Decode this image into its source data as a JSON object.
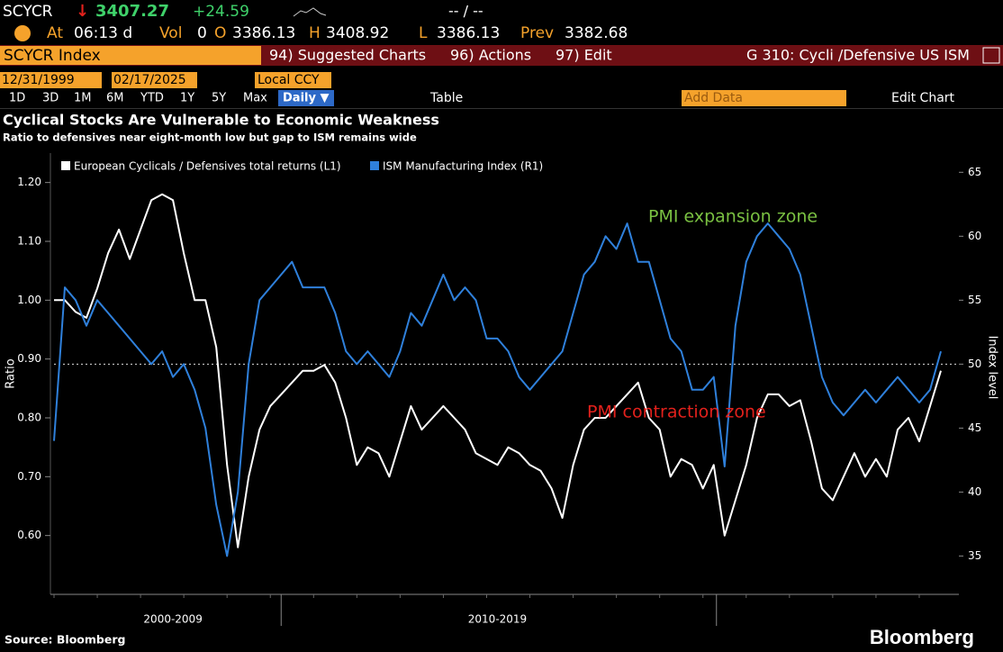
{
  "terminal": {
    "ticker": "SCYCR",
    "arrow": "↓",
    "last": "3407.27",
    "change": "+24.59",
    "bid_ask": "-- / --",
    "at_label": "At",
    "time": "06:13 d",
    "vol_label": "Vol",
    "vol": "0",
    "open_label": "O",
    "open": "3386.13",
    "high_label": "H",
    "high": "3408.92",
    "low_label": "L",
    "low": "3386.13",
    "prev_label": "Prev",
    "prev": "3382.68",
    "security": "SCYCR Index",
    "menu": [
      "94) Suggested Charts",
      "96) Actions",
      "97) Edit"
    ],
    "chart_id": "G 310: Cycli /Defensive US ISM",
    "start_date": "12/31/1999",
    "end_date": "02/17/2025",
    "currency": "Local CCY",
    "periods": [
      "1D",
      "3D",
      "1M",
      "6M",
      "YTD",
      "1Y",
      "5Y",
      "Max"
    ],
    "frequency": "Daily ▼",
    "table": "Table",
    "add_data": "Add Data",
    "edit_chart": "Edit Chart"
  },
  "chart_data": {
    "type": "line",
    "title": "Cyclical Stocks Are Vulnerable to Economic Weakness",
    "subtitle": "Ratio to defensives near eight-month low but gap to ISM remains wide",
    "source": "Source: Bloomberg",
    "brand": "Bloomberg",
    "y_label": "Ratio",
    "y2_label": "Index level",
    "categories": [
      null,
      null,
      null,
      null,
      null,
      null,
      null,
      null,
      null,
      null,
      null,
      "2000-2009",
      null,
      null,
      null,
      null,
      null,
      null,
      null,
      null,
      null,
      null,
      null,
      null,
      null,
      null,
      null,
      null,
      null,
      null,
      null,
      null,
      null,
      null,
      null,
      null,
      null,
      null,
      null,
      null,
      null,
      "2010-2019",
      null,
      null,
      null,
      null,
      null,
      null,
      null,
      null,
      null,
      null,
      null,
      null,
      null,
      null,
      null,
      null,
      null,
      null,
      null,
      null,
      null,
      null,
      null,
      null,
      null,
      null,
      null,
      null,
      null,
      null,
      null,
      null,
      null,
      null,
      null,
      null,
      null,
      null,
      null,
      null,
      null
    ],
    "series": [
      {
        "name": "European Cyclicals / Defensives total returns (L1)",
        "color": "#ffffff",
        "axis": "y",
        "values": [
          1.0,
          1.0,
          0.98,
          0.97,
          1.02,
          1.08,
          1.12,
          1.07,
          1.12,
          1.17,
          1.18,
          1.17,
          1.08,
          1.0,
          1.0,
          0.92,
          0.72,
          0.58,
          0.7,
          0.78,
          0.82,
          0.84,
          0.86,
          0.88,
          0.88,
          0.89,
          0.86,
          0.8,
          0.72,
          0.75,
          0.74,
          0.7,
          0.76,
          0.82,
          0.78,
          0.8,
          0.82,
          0.8,
          0.78,
          0.74,
          0.73,
          0.72,
          0.75,
          0.74,
          0.72,
          0.71,
          0.68,
          0.63,
          0.72,
          0.78,
          0.8,
          0.8,
          0.82,
          0.84,
          0.86,
          0.8,
          0.78,
          0.7,
          0.73,
          0.72,
          0.68,
          0.72,
          0.6,
          0.66,
          0.72,
          0.8,
          0.84,
          0.84,
          0.82,
          0.83,
          0.76,
          0.68,
          0.66,
          0.7,
          0.74,
          0.7,
          0.73,
          0.7,
          0.78,
          0.8,
          0.76,
          0.82,
          0.88
        ]
      },
      {
        "name": "ISM Manufacturing Index (R1)",
        "color": "#2f80db",
        "axis": "y2",
        "values": [
          44,
          56,
          55,
          53,
          55,
          54,
          53,
          52,
          51,
          50,
          51,
          49,
          50,
          48,
          45,
          39,
          35,
          40,
          50,
          55,
          56,
          57,
          58,
          56,
          56,
          56,
          54,
          51,
          50,
          51,
          50,
          49,
          51,
          54,
          53,
          55,
          57,
          55,
          56,
          55,
          52,
          52,
          51,
          49,
          48,
          49,
          50,
          51,
          54,
          57,
          58,
          60,
          59,
          61,
          58,
          58,
          55,
          52,
          51,
          48,
          48,
          49,
          42,
          53,
          58,
          60,
          61,
          60,
          59,
          57,
          53,
          49,
          47,
          46,
          47,
          48,
          47,
          48,
          49,
          48,
          47,
          48,
          51
        ]
      }
    ],
    "ylim": [
      0.5,
      1.25
    ],
    "yticks": [
      {
        "value": 0.6,
        "label": "0.60"
      },
      {
        "value": 0.7,
        "label": "0.70"
      },
      {
        "value": 0.8,
        "label": "0.80"
      },
      {
        "value": 0.9,
        "label": "0.90"
      },
      {
        "value": 1.0,
        "label": "1.00"
      },
      {
        "value": 1.1,
        "label": "1.10"
      },
      {
        "value": 1.2,
        "label": "1.20"
      }
    ],
    "y2lim": [
      32,
      66.5
    ],
    "y2ticks": [
      35,
      40,
      45,
      50,
      55,
      60,
      65
    ],
    "reference_line": {
      "value": 50,
      "axis": "y2"
    },
    "annotations": [
      {
        "text": "PMI expansion zone",
        "color": "#7ac142"
      },
      {
        "text": "PMI contraction zone",
        "color": "#e3211c"
      }
    ]
  }
}
